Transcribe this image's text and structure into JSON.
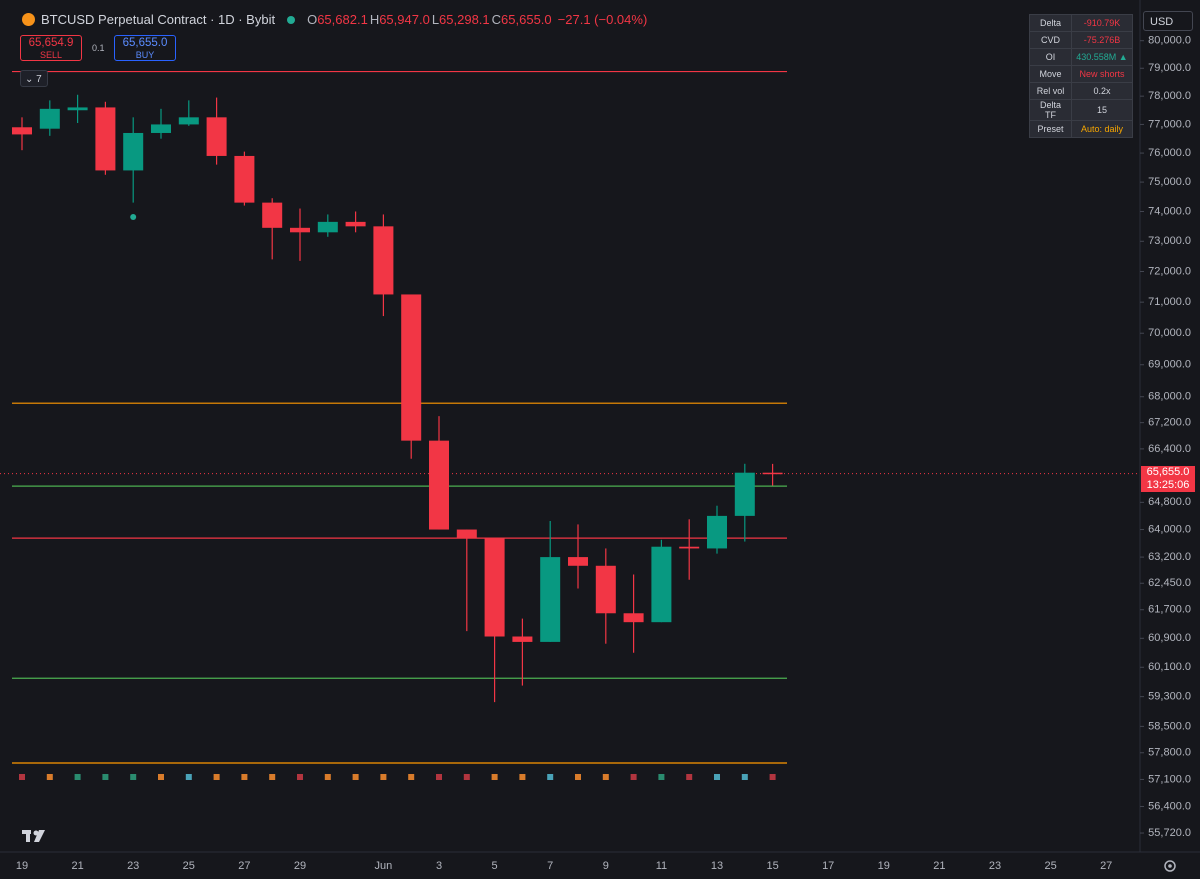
{
  "header": {
    "symbol": "BTCUSD Perpetual Contract · 1D · Bybit",
    "ohlc": [
      {
        "label": "O",
        "value": "65,682.1"
      },
      {
        "label": "H",
        "value": "65,947.0"
      },
      {
        "label": "L",
        "value": "65,298.1"
      },
      {
        "label": "C",
        "value": "65,655.0"
      }
    ],
    "change": "−27.1 (−0.04%)"
  },
  "order": {
    "sell_price": "65,654.9",
    "sell": "SELL",
    "quantity": "0.1",
    "buy_price": "65,655.0",
    "buy": "BUY"
  },
  "indicator_count": "7",
  "stats_table": {
    "rows": [
      {
        "label": "Delta",
        "value": "-910.79K",
        "color": "#f23645"
      },
      {
        "label": "CVD",
        "value": "-75.276B",
        "color": "#f23645"
      },
      {
        "label": "OI",
        "value": "430.558M ▲",
        "color": "#22ab94"
      },
      {
        "label": "Move",
        "value": "New shorts",
        "color": "#f23645"
      },
      {
        "label": "Rel vol",
        "value": "0.2x",
        "color": "#d1d4dc"
      },
      {
        "label": "Delta TF",
        "value": "15",
        "color": "#d1d4dc"
      },
      {
        "label": "Preset",
        "value": "Auto: daily",
        "color": "#f7a600"
      }
    ]
  },
  "currency": "USD",
  "price_tag": {
    "price": "65,655.0",
    "countdown": "13:25:06"
  },
  "chart_data": {
    "type": "candlestick",
    "categories": [
      "19",
      null,
      "21",
      null,
      "23",
      null,
      "25",
      null,
      "27",
      null,
      "29",
      null,
      null,
      "Jun",
      null,
      "3",
      null,
      "5",
      null,
      "7",
      null,
      "9",
      null,
      "11",
      null,
      "13",
      null,
      "15",
      null,
      "17",
      null,
      "19",
      null,
      "21",
      null,
      "23",
      null,
      "25",
      null,
      "27"
    ],
    "open": [
      76900,
      76850,
      77500,
      77600,
      75400,
      76700,
      77000,
      77250,
      75900,
      74300,
      73450,
      73300,
      73650,
      73500,
      71250,
      66650,
      64000,
      63750,
      60950,
      60800,
      63200,
      62950,
      61600,
      61350,
      63500,
      63450,
      64400,
      65682.1,
      null,
      null,
      null,
      null,
      null,
      null,
      null,
      null,
      null,
      null,
      null,
      null
    ],
    "high": [
      77250,
      77850,
      78050,
      77800,
      77250,
      77550,
      77850,
      77950,
      76050,
      74450,
      74100,
      73900,
      74000,
      73900,
      71250,
      67400,
      64000,
      63750,
      61450,
      64250,
      64150,
      63450,
      62700,
      63700,
      64300,
      64700,
      65950,
      65947.0,
      null,
      null,
      null,
      null,
      null,
      null,
      null,
      null,
      null,
      null,
      null,
      null
    ],
    "low": [
      76100,
      76600,
      77050,
      75250,
      74300,
      76500,
      76950,
      75600,
      74200,
      72400,
      72350,
      73150,
      73300,
      70550,
      66100,
      64000,
      61100,
      59150,
      59600,
      60800,
      62300,
      60750,
      60500,
      61350,
      62550,
      63300,
      63650,
      65298.1,
      null,
      null,
      null,
      null,
      null,
      null,
      null,
      null,
      null,
      null,
      null,
      null
    ],
    "close": [
      76650,
      77550,
      77600,
      75400,
      76700,
      77000,
      77250,
      75900,
      74300,
      73450,
      73300,
      73650,
      73500,
      71250,
      66650,
      64000,
      63750,
      60950,
      60800,
      63200,
      62950,
      61600,
      61350,
      63500,
      63450,
      64400,
      65682.1,
      65655.0,
      null,
      null,
      null,
      null,
      null,
      null,
      null,
      null,
      null,
      null,
      null,
      null
    ],
    "up_color": "#089981",
    "down_color": "#f23645",
    "log_scale": true,
    "ylim": [
      55240,
      81500
    ],
    "yticks": [
      {
        "value": 80000,
        "label": "80,000.0"
      },
      {
        "value": 79000,
        "label": "79,000.0"
      },
      {
        "value": 78000,
        "label": "78,000.0"
      },
      {
        "value": 77000,
        "label": "77,000.0"
      },
      {
        "value": 76000,
        "label": "76,000.0"
      },
      {
        "value": 75000,
        "label": "75,000.0"
      },
      {
        "value": 74000,
        "label": "74,000.0"
      },
      {
        "value": 73000,
        "label": "73,000.0"
      },
      {
        "value": 72000,
        "label": "72,000.0"
      },
      {
        "value": 71000,
        "label": "71,000.0"
      },
      {
        "value": 70000,
        "label": "70,000.0"
      },
      {
        "value": 69000,
        "label": "69,000.0"
      },
      {
        "value": 68000,
        "label": "68,000.0"
      },
      {
        "value": 67200,
        "label": "67,200.0"
      },
      {
        "value": 66400,
        "label": "66,400.0"
      },
      {
        "value": 64800,
        "label": "64,800.0"
      },
      {
        "value": 64000,
        "label": "64,000.0"
      },
      {
        "value": 63200,
        "label": "63,200.0"
      },
      {
        "value": 62450,
        "label": "62,450.0"
      },
      {
        "value": 61700,
        "label": "61,700.0"
      },
      {
        "value": 60900,
        "label": "60,900.0"
      },
      {
        "value": 60100,
        "label": "60,100.0"
      },
      {
        "value": 59300,
        "label": "59,300.0"
      },
      {
        "value": 58500,
        "label": "58,500.0"
      },
      {
        "value": 57800,
        "label": "57,800.0"
      },
      {
        "value": 57100,
        "label": "57,100.0"
      },
      {
        "value": 56400,
        "label": "56,400.0"
      },
      {
        "value": 55720,
        "label": "55,720.0"
      }
    ],
    "levels": [
      {
        "value": 78880,
        "color": "#f23645"
      },
      {
        "value": 67800,
        "color": "#ff9800"
      },
      {
        "value": 65280,
        "color": "#4caf50"
      },
      {
        "value": 63750,
        "color": "#f23645"
      },
      {
        "value": 59800,
        "color": "#4caf50"
      },
      {
        "value": 57530,
        "color": "#ff9800"
      }
    ],
    "signal_colors": [
      "#b2353f",
      "#d97c2b",
      "#2a8c6f",
      "#2a8c6f",
      "#2a8c6f",
      "#d97c2b",
      "#4aa3b8",
      "#d97c2b",
      "#d97c2b",
      "#d97c2b",
      "#b2353f",
      "#d97c2b",
      "#d97c2b",
      "#d97c2b",
      "#d97c2b",
      "#b2353f",
      "#b2353f",
      "#d97c2b",
      "#d97c2b",
      "#4aa3b8",
      "#d97c2b",
      "#d97c2b",
      "#b2353f",
      "#2a8c6f",
      "#b2353f",
      "#4aa3b8",
      "#4aa3b8",
      "#b2353f",
      null,
      null,
      null,
      null,
      null,
      null,
      null,
      null,
      null,
      null,
      null,
      null
    ]
  }
}
